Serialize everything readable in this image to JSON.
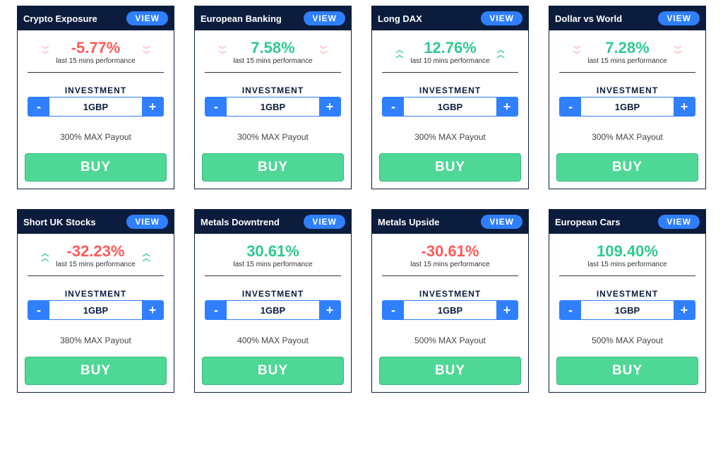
{
  "colors": {
    "header_bg": "#0b1c3d",
    "header_text": "#ffffff",
    "view_btn_bg": "#2f7fff",
    "view_btn_text": "#ffffff",
    "stepper_border": "#2f7fff",
    "stepper_btn_bg": "#2f7fff",
    "buy_bg": "#4fd796",
    "buy_border": "#34b87a",
    "buy_text": "#ffffff",
    "positive": "#2fc98f",
    "negative": "#ff5a5a",
    "chev_up": "#2fc98f",
    "chev_down": "#ffb3b3",
    "card_border": "#0b1c3d",
    "text_dark": "#0b1c3d",
    "text_mid": "#444444",
    "background": "#ffffff"
  },
  "labels": {
    "view": "VIEW",
    "investment": "INVESTMENT",
    "buy": "BUY",
    "minus": "-",
    "plus": "+"
  },
  "cards": [
    {
      "title": "Crypto Exposure",
      "performance": "-5.77%",
      "perf_color": "#ff5a5a",
      "perf_sub": "last 15 mins performance",
      "chev_dir": "down",
      "investment_value": "1GBP",
      "payout": "300% MAX Payout"
    },
    {
      "title": "European Banking",
      "performance": "7.58%",
      "perf_color": "#2fc98f",
      "perf_sub": "last 15 mins performance",
      "chev_dir": "down",
      "investment_value": "1GBP",
      "payout": "300% MAX Payout"
    },
    {
      "title": "Long DAX",
      "performance": "12.76%",
      "perf_color": "#2fc98f",
      "perf_sub": "last 10 mins performance",
      "chev_dir": "up",
      "investment_value": "1GBP",
      "payout": "300% MAX Payout"
    },
    {
      "title": "Dollar vs World",
      "performance": "7.28%",
      "perf_color": "#2fc98f",
      "perf_sub": "last 15 mins performance",
      "chev_dir": "down",
      "investment_value": "1GBP",
      "payout": "300% MAX Payout"
    },
    {
      "title": "Short UK Stocks",
      "performance": "-32.23%",
      "perf_color": "#ff5a5a",
      "perf_sub": "last 15 mins performance",
      "chev_dir": "up",
      "investment_value": "1GBP",
      "payout": "380% MAX Payout"
    },
    {
      "title": "Metals Downtrend",
      "performance": "30.61%",
      "perf_color": "#2fc98f",
      "perf_sub": "last 15 mins performance",
      "chev_dir": "none",
      "investment_value": "1GBP",
      "payout": "400% MAX Payout"
    },
    {
      "title": "Metals Upside",
      "performance": "-30.61%",
      "perf_color": "#ff5a5a",
      "perf_sub": "last 15 mins performance",
      "chev_dir": "none",
      "investment_value": "1GBP",
      "payout": "500% MAX Payout"
    },
    {
      "title": "European Cars",
      "performance": "109.40%",
      "perf_color": "#2fc98f",
      "perf_sub": "last 15 mins performance",
      "chev_dir": "none",
      "investment_value": "1GBP",
      "payout": "500% MAX Payout"
    }
  ]
}
